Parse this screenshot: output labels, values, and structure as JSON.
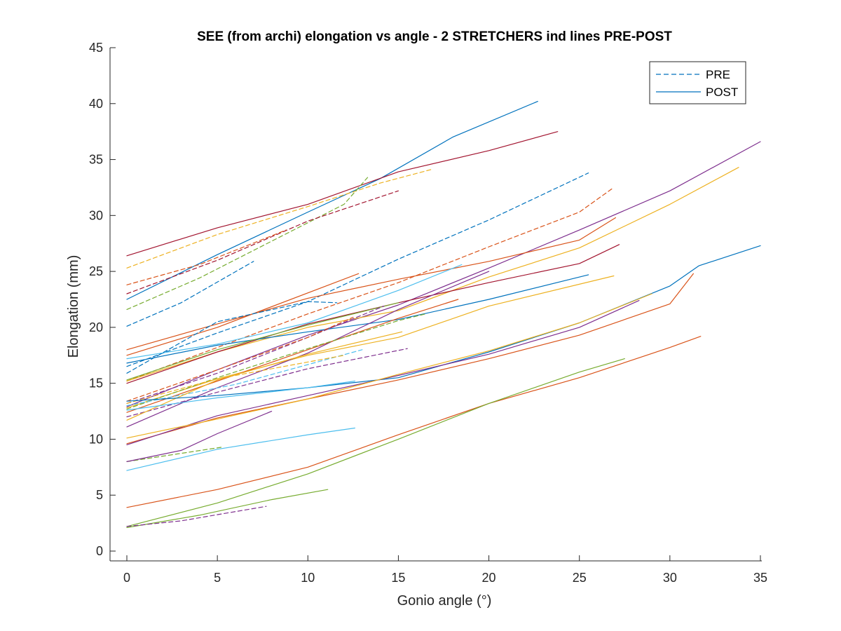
{
  "chart_data": {
    "type": "line",
    "title": "SEE (from archi) elongation vs angle - 2 STRETCHERS ind lines PRE-POST",
    "xlabel": "Gonio angle (°)",
    "ylabel": "Elongation (mm)",
    "xlim": [
      0,
      35
    ],
    "ylim": [
      0,
      45
    ],
    "xticks": [
      0,
      5,
      10,
      15,
      20,
      25,
      30,
      35
    ],
    "yticks": [
      0,
      5,
      10,
      15,
      20,
      25,
      30,
      35,
      40,
      45
    ],
    "grid": false,
    "legend": {
      "placement": "top-right",
      "entries": [
        {
          "label": "PRE",
          "style": "dashed"
        },
        {
          "label": "POST",
          "style": "solid"
        }
      ]
    },
    "series": [
      {
        "condition": "PRE",
        "color": "#0072BD",
        "points": [
          [
            0,
            20.1
          ],
          [
            3,
            22.2
          ],
          [
            7,
            25.9
          ]
        ]
      },
      {
        "condition": "POST",
        "color": "#0072BD",
        "points": [
          [
            0,
            22.5
          ],
          [
            5,
            26.5
          ],
          [
            10,
            30.3
          ],
          [
            14,
            33.3
          ],
          [
            18,
            37.0
          ],
          [
            22.7,
            40.2
          ]
        ]
      },
      {
        "condition": "POST",
        "color": "#A2142F",
        "points": [
          [
            0,
            26.4
          ],
          [
            5,
            28.9
          ],
          [
            10,
            31.0
          ],
          [
            15,
            33.9
          ],
          [
            20,
            35.8
          ],
          [
            23.8,
            37.5
          ]
        ]
      },
      {
        "condition": "PRE",
        "color": "#EDB120",
        "points": [
          [
            0,
            25.3
          ],
          [
            5,
            28.3
          ],
          [
            10,
            30.8
          ],
          [
            14,
            32.9
          ],
          [
            16.8,
            34.1
          ]
        ]
      },
      {
        "condition": "PRE",
        "color": "#77AC30",
        "points": [
          [
            0,
            21.6
          ],
          [
            4,
            24.4
          ],
          [
            8,
            27.7
          ],
          [
            12,
            31.0
          ],
          [
            13.3,
            33.4
          ]
        ]
      },
      {
        "condition": "PRE",
        "color": "#A2142F",
        "points": [
          [
            0,
            23.0
          ],
          [
            5,
            26.0
          ],
          [
            10,
            29.5
          ],
          [
            15,
            32.2
          ]
        ]
      },
      {
        "condition": "PRE",
        "color": "#D95319",
        "points": [
          [
            0,
            23.8
          ],
          [
            4,
            25.6
          ],
          [
            8.8,
            28.7
          ]
        ]
      },
      {
        "condition": "PRE",
        "color": "#0072BD",
        "points": [
          [
            0,
            16.5
          ],
          [
            5,
            19.5
          ],
          [
            10,
            22.3
          ],
          [
            15,
            26.1
          ],
          [
            20,
            29.6
          ],
          [
            25.5,
            33.8
          ]
        ]
      },
      {
        "condition": "PRE",
        "color": "#D95319",
        "points": [
          [
            0,
            15.2
          ],
          [
            5,
            18.2
          ],
          [
            10,
            21.2
          ],
          [
            15,
            24.0
          ],
          [
            20,
            27.2
          ],
          [
            25,
            30.3
          ],
          [
            26.9,
            32.5
          ]
        ]
      },
      {
        "condition": "POST",
        "color": "#7E2F8E",
        "points": [
          [
            0,
            12.9
          ],
          [
            5,
            16.2
          ],
          [
            10,
            19.3
          ],
          [
            15,
            22.0
          ],
          [
            20,
            25.3
          ],
          [
            25,
            28.7
          ],
          [
            30,
            32.2
          ],
          [
            35,
            36.6
          ]
        ]
      },
      {
        "condition": "POST",
        "color": "#EDB120",
        "points": [
          [
            0,
            15.2
          ],
          [
            5,
            17.8
          ],
          [
            10,
            20.0
          ],
          [
            15,
            21.5
          ],
          [
            20,
            24.5
          ],
          [
            25,
            27.1
          ],
          [
            30,
            31.0
          ],
          [
            33.8,
            34.3
          ]
        ]
      },
      {
        "condition": "POST",
        "color": "#D95319",
        "points": [
          [
            0,
            18.0
          ],
          [
            5,
            20.3
          ],
          [
            10,
            22.6
          ],
          [
            15,
            24.3
          ],
          [
            20,
            25.9
          ],
          [
            25,
            27.8
          ],
          [
            27.0,
            29.8
          ]
        ]
      },
      {
        "condition": "POST",
        "color": "#A2142F",
        "points": [
          [
            0,
            15.0
          ],
          [
            5,
            17.8
          ],
          [
            10,
            20.3
          ],
          [
            15,
            22.2
          ],
          [
            20,
            24.0
          ],
          [
            25,
            25.7
          ],
          [
            27.2,
            27.4
          ]
        ]
      },
      {
        "condition": "POST",
        "color": "#0072BD",
        "points": [
          [
            0,
            16.8
          ],
          [
            5,
            18.4
          ],
          [
            10,
            19.6
          ],
          [
            15,
            20.7
          ],
          [
            20,
            22.5
          ],
          [
            25.5,
            24.7
          ]
        ]
      },
      {
        "condition": "POST",
        "color": "#EDB120",
        "points": [
          [
            0,
            12.8
          ],
          [
            5,
            15.4
          ],
          [
            10,
            17.5
          ],
          [
            15,
            19.1
          ],
          [
            20,
            21.9
          ],
          [
            26.9,
            24.6
          ]
        ]
      },
      {
        "condition": "POST",
        "color": "#D95319",
        "points": [
          [
            0,
            17.5
          ],
          [
            5,
            20.0
          ],
          [
            12.8,
            24.8
          ]
        ]
      },
      {
        "condition": "POST",
        "color": "#4DBEEE",
        "points": [
          [
            0,
            17.2
          ],
          [
            5,
            18.5
          ],
          [
            10,
            20.4
          ],
          [
            15,
            23.3
          ],
          [
            18.5,
            25.6
          ]
        ]
      },
      {
        "condition": "POST",
        "color": "#7E2F8E",
        "points": [
          [
            0,
            11.1
          ],
          [
            5,
            14.6
          ],
          [
            10,
            17.7
          ],
          [
            15,
            21.6
          ],
          [
            20,
            25.0
          ]
        ]
      },
      {
        "condition": "POST",
        "color": "#77AC30",
        "points": [
          [
            0,
            15.3
          ],
          [
            5,
            18.0
          ],
          [
            10,
            20.2
          ],
          [
            15,
            22.2
          ]
        ]
      },
      {
        "condition": "POST",
        "color": "#D95319",
        "points": [
          [
            0,
            12.4
          ],
          [
            5,
            15.2
          ],
          [
            10,
            18.0
          ],
          [
            15,
            20.8
          ],
          [
            18.3,
            22.5
          ]
        ]
      },
      {
        "condition": "PRE",
        "color": "#7E2F8E",
        "points": [
          [
            0,
            13.2
          ],
          [
            5,
            15.9
          ],
          [
            10,
            19.1
          ],
          [
            14.2,
            21.9
          ]
        ]
      },
      {
        "condition": "PRE",
        "color": "#77AC30",
        "points": [
          [
            0,
            12.7
          ],
          [
            5,
            15.5
          ],
          [
            10,
            18.1
          ],
          [
            15,
            20.6
          ],
          [
            16.5,
            21.2
          ]
        ]
      },
      {
        "condition": "PRE",
        "color": "#D95319",
        "points": [
          [
            0,
            13.4
          ],
          [
            5,
            16.2
          ],
          [
            10,
            19.1
          ],
          [
            12.5,
            20.9
          ]
        ]
      },
      {
        "condition": "PRE",
        "color": "#7E2F8E",
        "points": [
          [
            0,
            12.0
          ],
          [
            5,
            14.2
          ],
          [
            10,
            16.3
          ],
          [
            15.5,
            18.1
          ]
        ]
      },
      {
        "condition": "PRE",
        "color": "#4DBEEE",
        "points": [
          [
            0,
            13.0
          ],
          [
            6,
            14.9
          ],
          [
            13,
            18.0
          ]
        ]
      },
      {
        "condition": "PRE",
        "color": "#0072BD",
        "points": [
          [
            0,
            15.9
          ],
          [
            5,
            20.5
          ],
          [
            10,
            22.3
          ],
          [
            11.6,
            22.2
          ]
        ]
      },
      {
        "condition": "PRE",
        "color": "#EDB120",
        "points": [
          [
            0,
            13.2
          ],
          [
            5,
            15.4
          ],
          [
            12,
            17.5
          ]
        ]
      },
      {
        "condition": "POST",
        "color": "#EDB120",
        "points": [
          [
            0,
            11.7
          ],
          [
            5,
            15.3
          ],
          [
            10,
            17.6
          ],
          [
            15.2,
            19.6
          ]
        ]
      },
      {
        "condition": "POST",
        "color": "#0072BD",
        "points": [
          [
            0,
            13.4
          ],
          [
            5,
            13.9
          ],
          [
            10,
            14.6
          ],
          [
            15,
            15.5
          ],
          [
            20,
            17.8
          ],
          [
            25,
            20.4
          ],
          [
            30,
            23.7
          ],
          [
            31.6,
            25.5
          ],
          [
            35,
            27.3
          ]
        ]
      },
      {
        "condition": "POST",
        "color": "#D95319",
        "points": [
          [
            0,
            9.6
          ],
          [
            5,
            11.9
          ],
          [
            10,
            13.6
          ],
          [
            15,
            15.3
          ],
          [
            20,
            17.2
          ],
          [
            25,
            19.3
          ],
          [
            30,
            22.1
          ],
          [
            31.3,
            24.8
          ]
        ]
      },
      {
        "condition": "POST",
        "color": "#7E2F8E",
        "points": [
          [
            0,
            9.5
          ],
          [
            5,
            12.1
          ],
          [
            10,
            13.9
          ],
          [
            15,
            15.7
          ],
          [
            20,
            17.6
          ],
          [
            25,
            20.0
          ],
          [
            28.3,
            22.4
          ]
        ]
      },
      {
        "condition": "POST",
        "color": "#EDB120",
        "points": [
          [
            0,
            10.1
          ],
          [
            5,
            11.8
          ],
          [
            10,
            13.6
          ],
          [
            15,
            15.8
          ],
          [
            20,
            17.9
          ],
          [
            25,
            20.4
          ],
          [
            29.0,
            23.0
          ]
        ]
      },
      {
        "condition": "POST",
        "color": "#4DBEEE",
        "points": [
          [
            0,
            12.6
          ],
          [
            5,
            13.7
          ],
          [
            10,
            14.6
          ],
          [
            12.6,
            15.2
          ]
        ]
      },
      {
        "condition": "POST",
        "color": "#4DBEEE",
        "points": [
          [
            0,
            7.2
          ],
          [
            5,
            9.1
          ],
          [
            10,
            10.4
          ],
          [
            12.6,
            11.0
          ]
        ]
      },
      {
        "condition": "PRE",
        "color": "#77AC30",
        "points": [
          [
            0,
            8.0
          ],
          [
            5.3,
            9.3
          ]
        ]
      },
      {
        "condition": "POST",
        "color": "#7E2F8E",
        "points": [
          [
            0,
            8.0
          ],
          [
            3,
            9.0
          ],
          [
            5,
            10.5
          ],
          [
            8,
            12.5
          ]
        ]
      },
      {
        "condition": "POST",
        "color": "#D95319",
        "points": [
          [
            0,
            3.9
          ],
          [
            5,
            5.5
          ],
          [
            10,
            7.5
          ],
          [
            15,
            10.4
          ],
          [
            20,
            13.2
          ],
          [
            25,
            15.5
          ],
          [
            30,
            18.2
          ],
          [
            31.7,
            19.2
          ]
        ]
      },
      {
        "condition": "POST",
        "color": "#77AC30",
        "points": [
          [
            0,
            2.2
          ],
          [
            5,
            4.3
          ],
          [
            10,
            6.9
          ],
          [
            15,
            10.0
          ],
          [
            20,
            13.2
          ],
          [
            25,
            16.0
          ],
          [
            27.5,
            17.2
          ]
        ]
      },
      {
        "condition": "POST",
        "color": "#77AC30",
        "points": [
          [
            0,
            2.1
          ],
          [
            4,
            3.2
          ],
          [
            8,
            4.6
          ],
          [
            11.1,
            5.5
          ]
        ]
      },
      {
        "condition": "PRE",
        "color": "#7E2F8E",
        "points": [
          [
            0,
            2.2
          ],
          [
            3,
            2.7
          ],
          [
            7.7,
            4.0
          ]
        ]
      }
    ]
  },
  "colors": {
    "axis": "#262626",
    "legend_line": "#0072BD",
    "background": "#ffffff"
  }
}
